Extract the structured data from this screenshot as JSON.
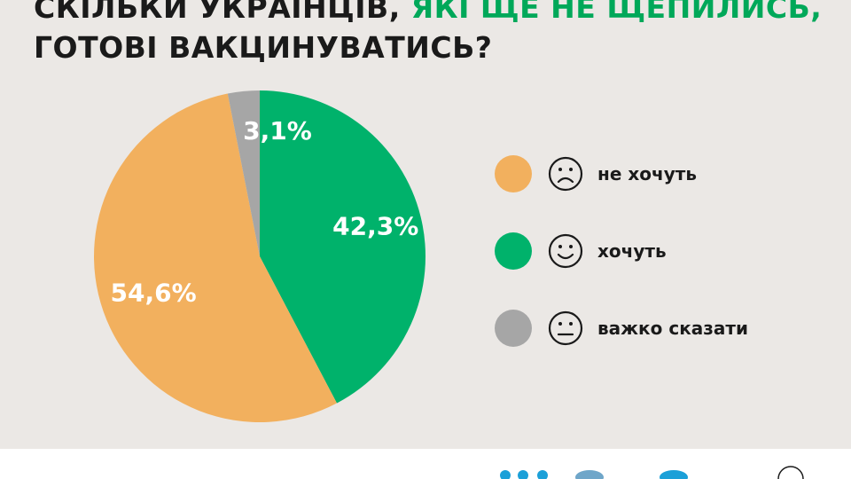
{
  "title": {
    "part1": "Скільки українців, ",
    "part2": "які ще не щепились,",
    "line2": "готові вакцинуватись?"
  },
  "colors": {
    "background": "#ebe8e5",
    "not_want": "#f2b05e",
    "want": "#00b26b",
    "hard_to_say": "#a6a6a6",
    "accent": "#00a859"
  },
  "chart_data": {
    "type": "pie",
    "title": "",
    "slices": [
      {
        "label": "хочуть",
        "value": 42.3,
        "display": "42,3%",
        "color": "#00b26b"
      },
      {
        "label": "не хочуть",
        "value": 54.6,
        "display": "54,6%",
        "color": "#f2b05e"
      },
      {
        "label": "важко сказати",
        "value": 3.1,
        "display": "3,1%",
        "color": "#a6a6a6"
      }
    ],
    "legend_position": "right"
  },
  "legend": [
    {
      "label": "не хочуть",
      "color": "#f2b05e",
      "face": "sad-face-icon"
    },
    {
      "label": "хочуть",
      "color": "#00b26b",
      "face": "smile-face-icon"
    },
    {
      "label": "важко сказати",
      "color": "#a6a6a6",
      "face": "neutral-face-icon"
    }
  ]
}
